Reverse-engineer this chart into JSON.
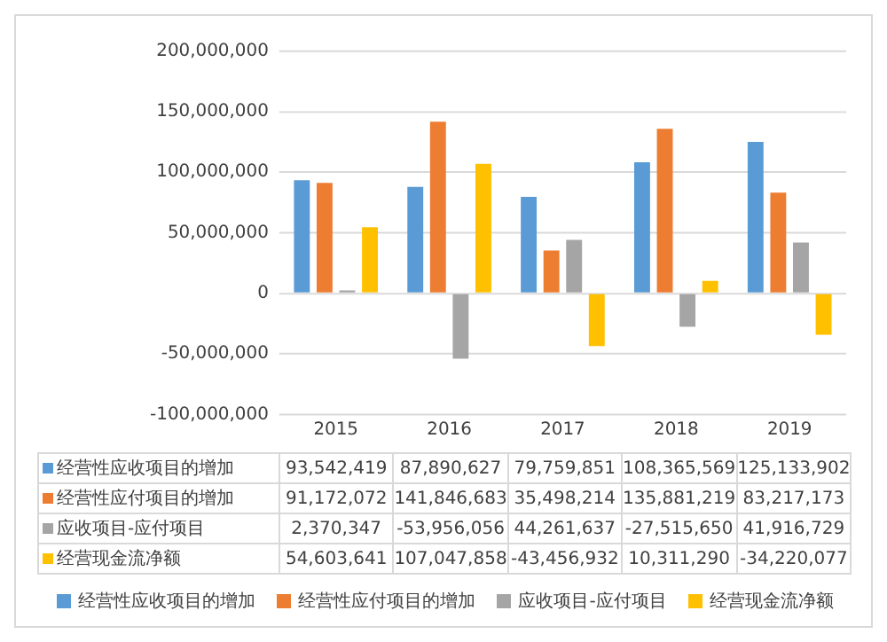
{
  "chart_data": {
    "type": "bar",
    "categories": [
      "2015",
      "2016",
      "2017",
      "2018",
      "2019"
    ],
    "series": [
      {
        "name": "经营性应收项目的增加",
        "color": "#5b9bd5",
        "values": [
          93542419,
          87890627,
          79759851,
          108365569,
          125133902
        ],
        "value_labels": [
          "93,542,419",
          "87,890,627",
          "79,759,851",
          "108,365,569",
          "125,133,902"
        ]
      },
      {
        "name": "经营性应付项目的增加",
        "color": "#ed7d31",
        "values": [
          91172072,
          141846683,
          35498214,
          135881219,
          83217173
        ],
        "value_labels": [
          "91,172,072",
          "141,846,683",
          "35,498,214",
          "135,881,219",
          "83,217,173"
        ]
      },
      {
        "name": "应收项目-应付项目",
        "color": "#a5a5a5",
        "values": [
          2370347,
          -53956056,
          44261637,
          -27515650,
          41916729
        ],
        "value_labels": [
          "2,370,347",
          "-53,956,056",
          "44,261,637",
          "-27,515,650",
          "41,916,729"
        ]
      },
      {
        "name": "经营现金流净额",
        "color": "#ffc000",
        "values": [
          54603641,
          107047858,
          -43456932,
          10311290,
          -34220077
        ],
        "value_labels": [
          "54,603,641",
          "107,047,858",
          "-43,456,932",
          "10,311,290",
          "-34,220,077"
        ]
      }
    ],
    "ylim": [
      -100000000,
      200000000
    ],
    "yticks": [
      {
        "value": -100000000,
        "label": "-100,000,000"
      },
      {
        "value": -50000000,
        "label": "-50,000,000"
      },
      {
        "value": 0,
        "label": "0"
      },
      {
        "value": 50000000,
        "label": "50,000,000"
      },
      {
        "value": 100000000,
        "label": "100,000,000"
      },
      {
        "value": 150000000,
        "label": "150,000,000"
      },
      {
        "value": 200000000,
        "label": "200,000,000"
      }
    ],
    "grid": "y",
    "legend": "bottom"
  }
}
